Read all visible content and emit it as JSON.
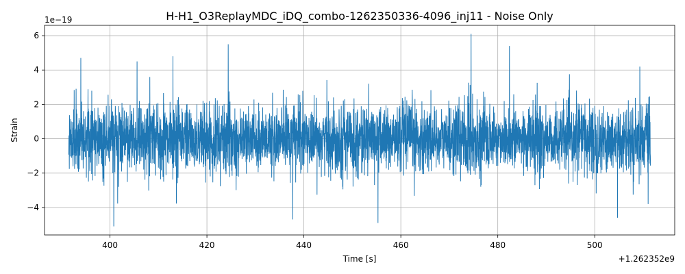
{
  "chart_data": {
    "type": "line",
    "title": "H-H1_O3ReplayMDC_iDQ_combo-1262350336-4096_inj11 - Noise Only",
    "xlabel": "Time [s]",
    "ylabel": "Strain",
    "x_offset_label": "+1.262352e9",
    "y_scale_label": "1e−19",
    "xlim": [
      386.5,
      516.5
    ],
    "ylim": [
      -5.6,
      6.6
    ],
    "x_ticks": [
      400,
      420,
      440,
      460,
      480,
      500
    ],
    "x_tick_labels": [
      "400",
      "420",
      "440",
      "460",
      "480",
      "500"
    ],
    "y_ticks": [
      -4,
      -2,
      0,
      2,
      4,
      6
    ],
    "y_tick_labels": [
      "−4",
      "−2",
      "0",
      "2",
      "4",
      "6"
    ],
    "grid": true,
    "series": [
      {
        "color": "#1f77b4",
        "x_start": 391.5,
        "x_end": 511.5,
        "envelope_peaks": [
          {
            "x": 394.0,
            "y": 4.7
          },
          {
            "x": 400.8,
            "y": -5.1
          },
          {
            "x": 405.6,
            "y": 4.5
          },
          {
            "x": 413.0,
            "y": 4.8
          },
          {
            "x": 424.4,
            "y": 5.5
          },
          {
            "x": 437.7,
            "y": -4.7
          },
          {
            "x": 455.3,
            "y": -4.9
          },
          {
            "x": 474.5,
            "y": 6.1
          },
          {
            "x": 482.4,
            "y": 5.4
          },
          {
            "x": 504.7,
            "y": -4.6
          },
          {
            "x": 509.3,
            "y": 4.2
          },
          {
            "x": 511.0,
            "y": -3.8
          }
        ],
        "typical_amplitude": 2.6
      }
    ]
  }
}
